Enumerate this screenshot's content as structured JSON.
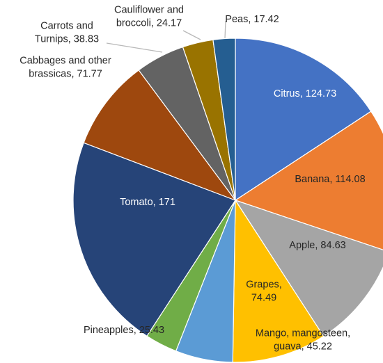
{
  "chart_data": {
    "type": "pie",
    "title": "",
    "slices": [
      {
        "name": "Citrus",
        "value": 124.73,
        "color": "#4472C4",
        "label_lines": [
          "Citrus, 124.73"
        ],
        "label_color": "#ffffff"
      },
      {
        "name": "Banana",
        "value": 114.08,
        "color": "#ED7D31",
        "label_lines": [
          "Banana, 114.08"
        ],
        "label_color": "#262626"
      },
      {
        "name": "Apple",
        "value": 84.63,
        "color": "#A5A5A5",
        "label_lines": [
          "Apple, 84.63"
        ],
        "label_color": "#262626"
      },
      {
        "name": "Grapes",
        "value": 74.49,
        "color": "#FFC000",
        "label_lines": [
          "Grapes,",
          "74.49"
        ],
        "label_color": "#262626"
      },
      {
        "name": "Mango, mangosteen, guava",
        "value": 45.22,
        "color": "#5B9BD5",
        "label_lines": [
          "Mango, mangosteen,",
          "guava, 45.22"
        ],
        "label_color": "#262626"
      },
      {
        "name": "Pineapples",
        "value": 25.43,
        "color": "#70AD47",
        "label_lines": [
          "Pineapples, 25.43"
        ],
        "label_color": "#262626"
      },
      {
        "name": "Tomato",
        "value": 171,
        "color": "#264478",
        "label_lines": [
          "Tomato, 171"
        ],
        "label_color": "#ffffff"
      },
      {
        "name": "Cabbages and other brassicas",
        "value": 71.77,
        "color": "#9E480E",
        "label_lines": [
          "Cabbages and other",
          "brassicas, 71.77"
        ],
        "label_color": "#262626"
      },
      {
        "name": "Carrots and Turnips",
        "value": 38.83,
        "color": "#636363",
        "label_lines": [
          "Carrots and",
          "Turnips, 38.83"
        ],
        "label_color": "#262626"
      },
      {
        "name": "Cauliflower and broccoli",
        "value": 24.17,
        "color": "#997300",
        "label_lines": [
          "Cauliflower and",
          "broccoli, 24.17"
        ],
        "label_color": "#262626"
      },
      {
        "name": "Peas",
        "value": 17.42,
        "color": "#255E91",
        "label_lines": [
          "Peas, 17.42"
        ],
        "label_color": "#262626"
      }
    ],
    "start_angle_deg": 0,
    "direction": "clockwise",
    "legend": "none"
  }
}
